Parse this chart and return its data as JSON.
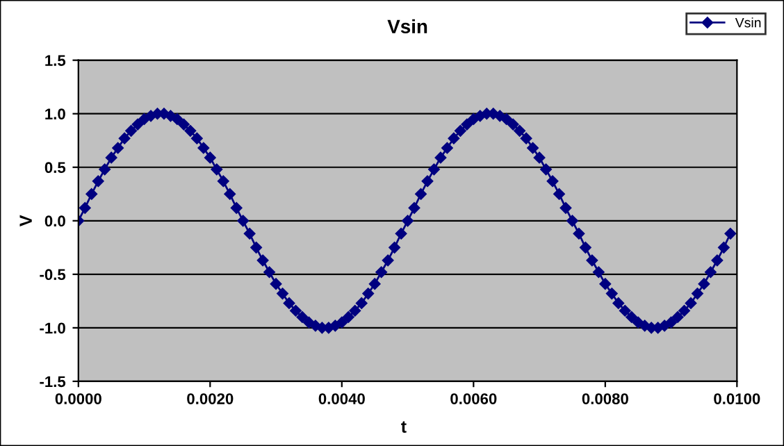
{
  "chart_data": {
    "type": "line",
    "title": "Vsin",
    "xlabel": "t",
    "ylabel": "V",
    "x": [
      0,
      0.0001,
      0.0002,
      0.0003,
      0.0004,
      0.0005,
      0.0006,
      0.0007,
      0.0008,
      0.0009,
      0.001,
      0.0011,
      0.0012,
      0.0013,
      0.0014,
      0.0015,
      0.0016,
      0.0017,
      0.0018,
      0.0019,
      0.002,
      0.0021,
      0.0022,
      0.0023,
      0.0024,
      0.0025,
      0.0026,
      0.0027,
      0.0028,
      0.0029,
      0.003,
      0.0031,
      0.0032,
      0.0033,
      0.0034,
      0.0035,
      0.0036,
      0.0037,
      0.0038,
      0.0039,
      0.004,
      0.0041,
      0.0042,
      0.0043,
      0.0044,
      0.0045,
      0.0046,
      0.0047,
      0.0048,
      0.0049,
      0.005,
      0.0051,
      0.0052,
      0.0053,
      0.0054,
      0.0055,
      0.0056,
      0.0057,
      0.0058,
      0.0059,
      0.006,
      0.0061,
      0.0062,
      0.0063,
      0.0064,
      0.0065,
      0.0066,
      0.0067,
      0.0068,
      0.0069,
      0.007,
      0.0071,
      0.0072,
      0.0073,
      0.0074,
      0.0075,
      0.0076,
      0.0077,
      0.0078,
      0.0079,
      0.008,
      0.0081,
      0.0082,
      0.0083,
      0.0084,
      0.0085,
      0.0086,
      0.0087,
      0.0088,
      0.0089,
      0.009,
      0.0091,
      0.0092,
      0.0093,
      0.0094,
      0.0095,
      0.0096,
      0.0097,
      0.0098,
      0.0099
    ],
    "series": [
      {
        "name": "Vsin",
        "color": "#000080",
        "values": [
          0,
          0.12,
          0.25,
          0.37,
          0.48,
          0.59,
          0.68,
          0.77,
          0.84,
          0.9,
          0.95,
          0.98,
          1.0,
          1.0,
          0.98,
          0.95,
          0.9,
          0.84,
          0.77,
          0.68,
          0.59,
          0.48,
          0.37,
          0.25,
          0.12,
          0,
          -0.12,
          -0.25,
          -0.37,
          -0.48,
          -0.59,
          -0.68,
          -0.77,
          -0.84,
          -0.9,
          -0.95,
          -0.98,
          -1.0,
          -1.0,
          -0.98,
          -0.95,
          -0.9,
          -0.84,
          -0.77,
          -0.68,
          -0.59,
          -0.48,
          -0.37,
          -0.25,
          -0.12,
          0,
          0.12,
          0.25,
          0.37,
          0.48,
          0.59,
          0.68,
          0.77,
          0.84,
          0.9,
          0.95,
          0.98,
          1.0,
          1.0,
          0.98,
          0.95,
          0.9,
          0.84,
          0.77,
          0.68,
          0.59,
          0.48,
          0.37,
          0.25,
          0.12,
          0,
          -0.12,
          -0.25,
          -0.37,
          -0.48,
          -0.59,
          -0.68,
          -0.77,
          -0.84,
          -0.9,
          -0.95,
          -0.98,
          -1.0,
          -1.0,
          -0.98,
          -0.95,
          -0.9,
          -0.84,
          -0.77,
          -0.68,
          -0.59,
          -0.48,
          -0.37,
          -0.25,
          -0.12
        ]
      }
    ],
    "xlim": [
      0,
      0.01
    ],
    "xticks": [
      {
        "value": 0,
        "label": "0.0000"
      },
      {
        "value": 0.002,
        "label": "0.0020"
      },
      {
        "value": 0.004,
        "label": "0.0040"
      },
      {
        "value": 0.006,
        "label": "0.0060"
      },
      {
        "value": 0.008,
        "label": "0.0080"
      },
      {
        "value": 0.01,
        "label": "0.0100"
      }
    ],
    "ylim": [
      -1.5,
      1.5
    ],
    "yticks": [
      {
        "value": -1.5,
        "label": "-1.5"
      },
      {
        "value": -1,
        "label": "-1.0"
      },
      {
        "value": -0.5,
        "label": "-0.5"
      },
      {
        "value": 0,
        "label": "0.0"
      },
      {
        "value": 0.5,
        "label": "0.5"
      },
      {
        "value": 1,
        "label": "1.0"
      },
      {
        "value": 1.5,
        "label": "1.5"
      }
    ],
    "grid": "y",
    "legend": "top right",
    "marker": "diamond",
    "line_style": "solid"
  }
}
